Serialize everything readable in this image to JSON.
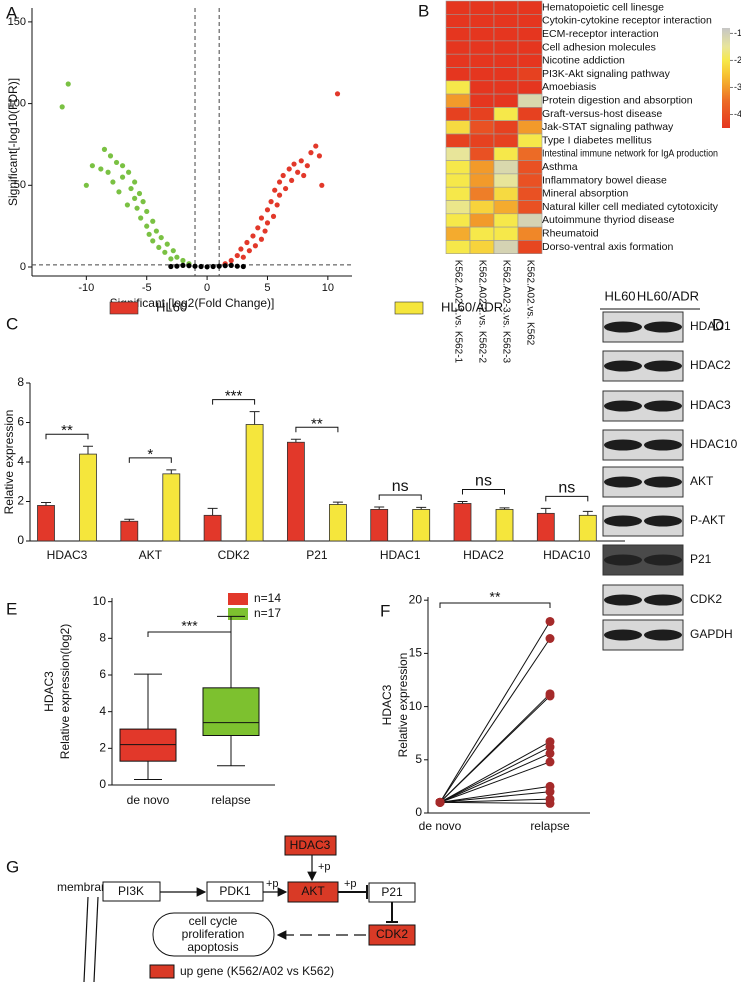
{
  "panel_labels": [
    "A",
    "B",
    "C",
    "D",
    "E",
    "F",
    "G"
  ],
  "chart_data": [
    {
      "type": "scatter",
      "xlabel": "Significant [log2(Fold Change)]",
      "ylabel": "Significant[-log10(FDR)]",
      "xlim": [
        -14.5,
        12
      ],
      "ylim": [
        -5.5,
        158.5
      ],
      "xticks": [
        -10,
        -5,
        0,
        5,
        10
      ],
      "yticks": [
        0,
        50,
        100,
        150
      ],
      "vlines": [
        -1,
        1
      ],
      "hline": 1.3,
      "series": [
        {
          "color": "#7ac143",
          "x": [
            -1.5,
            -2,
            -2.5,
            -2.8,
            -3,
            -3.3,
            -3.5,
            -3.8,
            -4,
            -4.2,
            -4.5,
            -4.5,
            -4.8,
            -5,
            -5,
            -5.3,
            -5.5,
            -5.6,
            -5.8,
            -6,
            -6,
            -6.3,
            -6.5,
            -6.6,
            -7,
            -7,
            -7.3,
            -7.5,
            -7.8,
            -8,
            -8.2,
            -8.5,
            -8.8,
            -9.5,
            -10,
            -11.5,
            -12
          ],
          "values": [
            2,
            4,
            6,
            10,
            5,
            14,
            9,
            18,
            12,
            22,
            16,
            28,
            20,
            34,
            25,
            40,
            30,
            45,
            36,
            52,
            42,
            48,
            58,
            38,
            55,
            62,
            46,
            64,
            52,
            68,
            58,
            72,
            60,
            62,
            50,
            112,
            98
          ]
        },
        {
          "color": "#e2382a",
          "x": [
            1.5,
            2,
            2.5,
            2.8,
            3,
            3.3,
            3.5,
            3.8,
            4,
            4.2,
            4.5,
            4.5,
            4.8,
            5,
            5,
            5.3,
            5.5,
            5.6,
            5.8,
            6,
            6,
            6.3,
            6.5,
            6.8,
            7,
            7.2,
            7.5,
            7.8,
            8,
            8.3,
            8.6,
            9,
            9.3,
            9.5,
            10.8
          ],
          "values": [
            2,
            4,
            7,
            11,
            6,
            15,
            10,
            19,
            13,
            24,
            17,
            30,
            22,
            35,
            27,
            40,
            31,
            47,
            38,
            52,
            44,
            56,
            48,
            60,
            53,
            63,
            58,
            65,
            56,
            62,
            70,
            74,
            68,
            50,
            106
          ]
        },
        {
          "color": "#000000",
          "x": [
            -3,
            -2.5,
            -2,
            -1.5,
            -1,
            -0.5,
            0,
            0.5,
            1,
            1.5,
            2,
            2.5,
            3
          ],
          "values": [
            0.3,
            0.5,
            1,
            0.8,
            0.5,
            0.3,
            0.1,
            0.3,
            0.5,
            0.8,
            1,
            0.5,
            0.3
          ]
        }
      ]
    },
    {
      "type": "heatmap",
      "rows": [
        "Hematopoietic cell linesge",
        "Cytokin-cytokine receptor interaction",
        "ECM-receptor interaction",
        "Cell adhesion molecules",
        "Nicotine addiction",
        "PI3K-Akt signaling pathway",
        "Amoebiasis",
        "Protein digestion and absorption",
        "Graft-versus-host disease",
        "Jak-STAT signaling pathway",
        "Type I diabetes mellitus",
        "Intestinal immune network for IgA  production",
        "Asthma",
        "Inflammatory bowel diease",
        "Mineral absorption",
        "Natural killer cell mediated cytotoxicity",
        "Autoimmune thyriod disease",
        "Rheumatoid",
        "Dorso-ventral axis formation"
      ],
      "columns": [
        "K562.A02-1.vs. K562-1",
        "K562.A02-2.vs. K562-2",
        "K562.A02-3.vs. K562-3",
        "K562.A02.vs. K562"
      ],
      "values": [
        [
          -4.5,
          -4.5,
          -4.5,
          -4.5
        ],
        [
          -4.5,
          -4.5,
          -4.5,
          -4.5
        ],
        [
          -4.5,
          -4.5,
          -4.5,
          -4.5
        ],
        [
          -4.5,
          -4.5,
          -4.5,
          -4.5
        ],
        [
          -4.5,
          -4.5,
          -4.5,
          -4.5
        ],
        [
          -4.5,
          -4.5,
          -4.5,
          -4.3
        ],
        [
          -2,
          -4.5,
          -4.5,
          -4.5
        ],
        [
          -3,
          -4.5,
          -4.5,
          -1.2
        ],
        [
          -4.3,
          -4.3,
          -2,
          -4.3
        ],
        [
          -2.2,
          -4,
          -4.3,
          -3
        ],
        [
          -4.3,
          -4.3,
          -4.3,
          -2
        ],
        [
          -1.5,
          -4,
          -2,
          -3.5
        ],
        [
          -2,
          -3,
          -1.2,
          -4
        ],
        [
          -2,
          -3,
          -1.5,
          -4
        ],
        [
          -2,
          -3.3,
          -2.2,
          -4
        ],
        [
          -1.6,
          -2.3,
          -2.8,
          -4
        ],
        [
          -2,
          -3,
          -2,
          -1.1
        ],
        [
          -2.8,
          -2,
          -2,
          -3.2
        ],
        [
          -2,
          -2.3,
          -1.1,
          -4.2
        ]
      ],
      "colorscale": [
        {
          "value": -0.8,
          "color": "#c6c6c6"
        },
        {
          "value": -1.5,
          "color": "#e8e59a"
        },
        {
          "value": -2,
          "color": "#f6e84a"
        },
        {
          "value": -2.5,
          "color": "#f7c533"
        },
        {
          "value": -3,
          "color": "#f29a2a"
        },
        {
          "value": -3.5,
          "color": "#ec6b26"
        },
        {
          "value": -4.5,
          "color": "#e5361f"
        }
      ],
      "colorbar_lim": [
        -0.8,
        -4.5
      ],
      "colorbar_ticks": [
        -1,
        -2,
        -3,
        -4
      ]
    },
    {
      "type": "bar",
      "ylabel": "Relative expression",
      "ylim": [
        0,
        8
      ],
      "yticks": [
        0,
        2,
        4,
        6,
        8
      ],
      "categories": [
        "HDAC3",
        "AKT",
        "CDK2",
        "P21",
        "HDAC1",
        "HDAC2",
        "HDAC10"
      ],
      "series": [
        {
          "name": "HL60",
          "color": "#e2382a",
          "values": [
            1.8,
            1.0,
            1.3,
            5.0,
            1.6,
            1.9,
            1.4
          ],
          "errors": [
            0.15,
            0.1,
            0.35,
            0.15,
            0.12,
            0.1,
            0.25
          ]
        },
        {
          "name": "HL60/ADR",
          "color": "#f5e63c",
          "values": [
            4.4,
            3.4,
            5.9,
            1.85,
            1.6,
            1.6,
            1.3
          ],
          "errors": [
            0.4,
            0.2,
            0.65,
            0.12,
            0.1,
            0.08,
            0.2
          ]
        }
      ],
      "significance": [
        "**",
        "*",
        "***",
        "**",
        "ns",
        "ns",
        "ns"
      ]
    },
    {
      "type": "box",
      "title": "HDAC3",
      "ylabel": "Relative expression(log2)",
      "ylim": [
        0,
        10.2
      ],
      "yticks": [
        0,
        2,
        4,
        6,
        8,
        10
      ],
      "categories": [
        "de novo",
        "relapse"
      ],
      "series": [
        {
          "name": "n=14",
          "color": "#e2382a",
          "min": 0.3,
          "q1": 1.3,
          "median": 2.2,
          "q3": 3.05,
          "max": 6.05
        },
        {
          "name": "n=17",
          "color": "#7dc12f",
          "min": 1.05,
          "q1": 2.7,
          "median": 3.4,
          "q3": 5.3,
          "max": 9.2
        }
      ],
      "significance": "***"
    },
    {
      "type": "paired",
      "title": "HDAC3",
      "ylabel": "Relative expression",
      "ylim": [
        0,
        20.3
      ],
      "yticks": [
        0,
        5,
        10,
        15,
        20
      ],
      "categories": [
        "de novo",
        "relapse"
      ],
      "color": "#a52a2a",
      "series": [
        {
          "values": [
            1,
            18
          ]
        },
        {
          "values": [
            1,
            16.4
          ]
        },
        {
          "values": [
            1,
            11.2
          ]
        },
        {
          "values": [
            1,
            11
          ]
        },
        {
          "values": [
            1,
            6.7
          ]
        },
        {
          "values": [
            1,
            6.2
          ]
        },
        {
          "values": [
            1,
            5.6
          ]
        },
        {
          "values": [
            1,
            4.8
          ]
        },
        {
          "values": [
            1,
            2.5
          ]
        },
        {
          "values": [
            1,
            2
          ]
        },
        {
          "values": [
            1,
            1.3
          ]
        },
        {
          "values": [
            1,
            0.9
          ]
        }
      ],
      "significance": "**"
    }
  ],
  "blot": {
    "columns": [
      "HL60",
      "HL60/ADR"
    ],
    "rows": [
      "HDAC1",
      "HDAC2",
      "HDAC3",
      "HDAC10",
      "AKT",
      "P-AKT",
      "P21",
      "CDK2",
      "GAPDH"
    ]
  },
  "diagram": {
    "membrane": "membrane",
    "pi3k": "PI3K",
    "pdk1": "PDK1",
    "akt": "AKT",
    "hdac3": "HDAC3",
    "p21": "P21",
    "cdk2": "CDK2",
    "phos": [
      "+p",
      "+p",
      "+p"
    ],
    "outcome": [
      "cell cycle",
      "proliferation",
      "apoptosis"
    ],
    "legend": "up gene (K562/A02 vs K562)"
  }
}
